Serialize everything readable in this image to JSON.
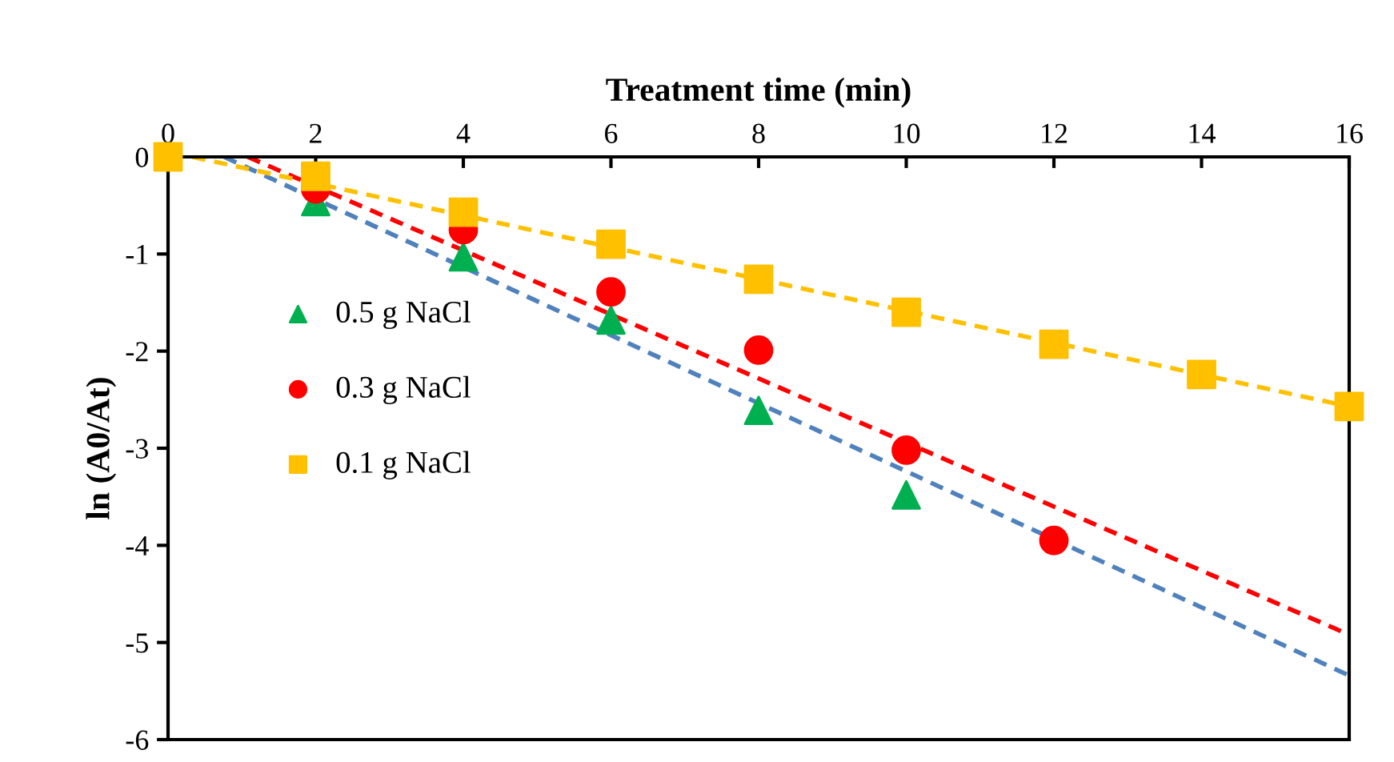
{
  "chart_data": {
    "type": "scatter",
    "xlabel": "Treatment time (min)",
    "ylabel": "ln (A0/At)",
    "xlim": [
      0,
      16
    ],
    "xticks": [
      0,
      2,
      4,
      6,
      8,
      10,
      12,
      14,
      16
    ],
    "ylim": [
      -6,
      0
    ],
    "yticks": [
      -6,
      -5,
      -4,
      -3,
      -2,
      -1,
      0
    ],
    "grid": false,
    "legend": "left",
    "tick_labels": "xy",
    "series": [
      {
        "name": "0.5 g NaCl",
        "color": "#00b050",
        "marker": "triangle",
        "x": [
          2,
          4,
          6,
          8,
          10
        ],
        "values": [
          -0.46,
          -1.03,
          -1.68,
          -2.61,
          -3.48
        ]
      },
      {
        "name": "0.3 g NaCl",
        "color": "#ff0000",
        "marker": "circle",
        "x": [
          2,
          4,
          6,
          8,
          10,
          12
        ],
        "values": [
          -0.33,
          -0.75,
          -1.39,
          -1.99,
          -3.02,
          -3.95
        ]
      },
      {
        "name": "0.1 g NaCl",
        "color": "#ffc000",
        "marker": "square",
        "x": [
          0,
          2,
          4,
          6,
          8,
          10,
          12,
          14,
          16
        ],
        "values": [
          0,
          -0.2,
          -0.57,
          -0.9,
          -1.26,
          -1.6,
          -1.93,
          -2.24,
          -2.57
        ]
      },
      {
        "type": "line",
        "color": "#4f81bd",
        "line_style": "dashed",
        "x": [
          0.76,
          16
        ],
        "values": [
          0,
          -5.34
        ]
      },
      {
        "type": "line",
        "color": "#ff0000",
        "line_style": "dashed",
        "x": [
          1.08,
          16
        ],
        "values": [
          0,
          -4.92
        ]
      },
      {
        "type": "line",
        "color": "#ffc000",
        "line_style": "dashed",
        "x": [
          0.33,
          16
        ],
        "values": [
          0,
          -2.57
        ]
      }
    ]
  }
}
